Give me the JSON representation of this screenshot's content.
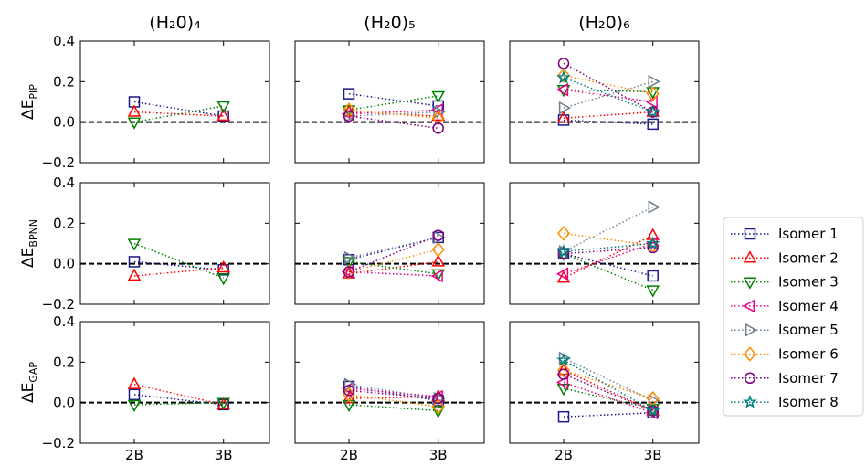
{
  "chart_data": {
    "type": "line",
    "columns": [
      "(H₂0)₄",
      "(H₂0)₅",
      "(H₂0)₆"
    ],
    "rows": [
      {
        "ylabel": "ΔE",
        "sub": "PIP"
      },
      {
        "ylabel": "ΔE",
        "sub": "BPNN"
      },
      {
        "ylabel": "ΔE",
        "sub": "GAP"
      }
    ],
    "categories": [
      "2B",
      "3B"
    ],
    "ylim": [
      -0.2,
      0.4
    ],
    "yticks": [
      {
        "value": -0.2,
        "label": "−0.2"
      },
      {
        "value": 0,
        "label": "0.0"
      },
      0.2,
      0.4
    ],
    "hline": 0,
    "series": [
      {
        "name": "Isomer 1",
        "color": "#1a1a8c",
        "marker": "square",
        "values": [
          [
            0.1,
            0.03
          ],
          [
            0.14,
            0.08
          ],
          [
            0.01,
            -0.01
          ],
          [
            0.01,
            -0.03
          ],
          [
            0.02,
            0.13
          ],
          [
            0.05,
            -0.06
          ],
          [
            0.04,
            -0.01
          ],
          [
            0.08,
            0.01
          ],
          [
            -0.07,
            -0.05
          ]
        ]
      },
      {
        "name": "Isomer 2",
        "color": "#ff0000",
        "marker": "triangle-up",
        "values": [
          [
            0.05,
            0.03
          ],
          [
            0.05,
            0.03
          ],
          [
            0.02,
            0.05
          ],
          [
            -0.06,
            -0.02
          ],
          [
            -0.05,
            0.01
          ],
          [
            -0.07,
            0.14
          ],
          [
            0.09,
            -0.01
          ],
          [
            0.02,
            0.03
          ],
          [
            0.16,
            -0.04
          ]
        ]
      },
      {
        "name": "Isomer 3",
        "color": "#008000",
        "marker": "triangle-down",
        "values": [
          [
            0,
            0.08
          ],
          [
            0.06,
            0.13
          ],
          [
            0.16,
            0.15
          ],
          [
            0.1,
            -0.07
          ],
          [
            0.01,
            -0.05
          ],
          [
            0.05,
            -0.13
          ],
          [
            -0.01,
            0
          ],
          [
            -0.01,
            -0.04
          ],
          [
            0.07,
            -0.03
          ]
        ]
      },
      {
        "name": "Isomer 4",
        "color": "#e6008a",
        "marker": "triangle-left",
        "values": [
          [
            null,
            null
          ],
          [
            0.04,
            0.06
          ],
          [
            0.16,
            0.1
          ],
          [
            null,
            null
          ],
          [
            -0.04,
            -0.06
          ],
          [
            -0.05,
            0.1
          ],
          [
            null,
            null
          ],
          [
            0.07,
            0.03
          ],
          [
            0.1,
            -0.05
          ]
        ]
      },
      {
        "name": "Isomer 5",
        "color": "#708090",
        "marker": "triangle-right",
        "values": [
          [
            null,
            null
          ],
          [
            0.03,
            0.05
          ],
          [
            0.07,
            0.2
          ],
          [
            null,
            null
          ],
          [
            0.03,
            0.13
          ],
          [
            0.06,
            0.28
          ],
          [
            null,
            null
          ],
          [
            0.09,
            0.02
          ],
          [
            0.22,
            0.01
          ]
        ]
      },
      {
        "name": "Isomer 6",
        "color": "#ff8c00",
        "marker": "diamond",
        "values": [
          [
            null,
            null
          ],
          [
            0.06,
            0.02
          ],
          [
            0.23,
            0.14
          ],
          [
            null,
            null
          ],
          [
            -0.04,
            0.07
          ],
          [
            0.15,
            0.09
          ],
          [
            null,
            null
          ],
          [
            0.04,
            -0.02
          ],
          [
            0.16,
            0.02
          ]
        ]
      },
      {
        "name": "Isomer 7",
        "color": "#800080",
        "marker": "circle",
        "values": [
          [
            null,
            null
          ],
          [
            0.03,
            -0.03
          ],
          [
            0.29,
            0.05
          ],
          [
            null,
            null
          ],
          [
            -0.04,
            0.14
          ],
          [
            0.05,
            0.08
          ],
          [
            null,
            null
          ],
          [
            0.06,
            0.02
          ],
          [
            0.14,
            -0.04
          ]
        ]
      },
      {
        "name": "Isomer 8",
        "color": "#008080",
        "marker": "star",
        "values": [
          [
            null,
            null
          ],
          [
            null,
            null
          ],
          [
            0.22,
            0.05
          ],
          [
            null,
            null
          ],
          [
            null,
            null
          ],
          [
            0.06,
            0.1
          ],
          [
            null,
            null
          ],
          [
            null,
            null
          ],
          [
            0.21,
            -0.04
          ]
        ]
      }
    ]
  }
}
